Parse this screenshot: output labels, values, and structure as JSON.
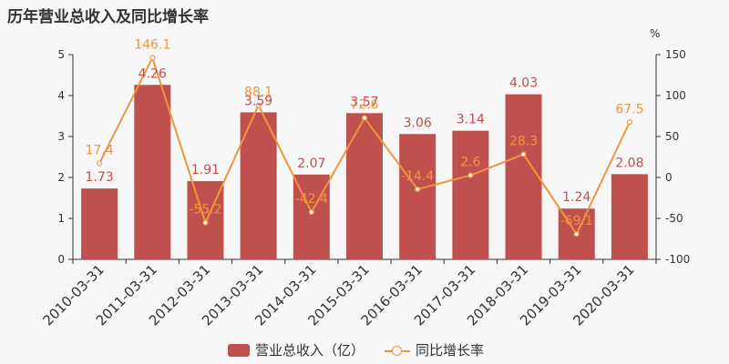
{
  "title": "历年营业总收入及同比增长率",
  "right_axis_unit": "%",
  "colors": {
    "bar": "#c0504d",
    "line": "#f0953f",
    "axis": "#333333",
    "grid": "#e0e0e0"
  },
  "legend": {
    "bar_label": "营业总收入（亿）",
    "line_label": "同比增长率"
  },
  "chart_data": {
    "type": "bar",
    "categories": [
      "2010-03-31",
      "2011-03-31",
      "2012-03-31",
      "2013-03-31",
      "2014-03-31",
      "2015-03-31",
      "2016-03-31",
      "2017-03-31",
      "2018-03-31",
      "2019-03-31",
      "2020-03-31"
    ],
    "series": [
      {
        "name": "营业总收入（亿）",
        "type": "bar",
        "axis": "left",
        "values": [
          1.73,
          4.26,
          1.91,
          3.59,
          2.07,
          3.57,
          3.06,
          3.14,
          4.03,
          1.24,
          2.08
        ]
      },
      {
        "name": "同比增长率",
        "type": "line",
        "axis": "right",
        "values": [
          17.4,
          146.1,
          -55.2,
          88.1,
          -42.4,
          72.6,
          -14.4,
          2.6,
          28.3,
          -69.1,
          67.5
        ]
      }
    ],
    "y_left": {
      "lim": [
        0,
        5
      ],
      "ticks": [
        0,
        1,
        2,
        3,
        4,
        5
      ]
    },
    "y_right": {
      "lim": [
        -100,
        150
      ],
      "ticks": [
        -100,
        -50,
        0,
        50,
        100,
        150
      ]
    }
  }
}
